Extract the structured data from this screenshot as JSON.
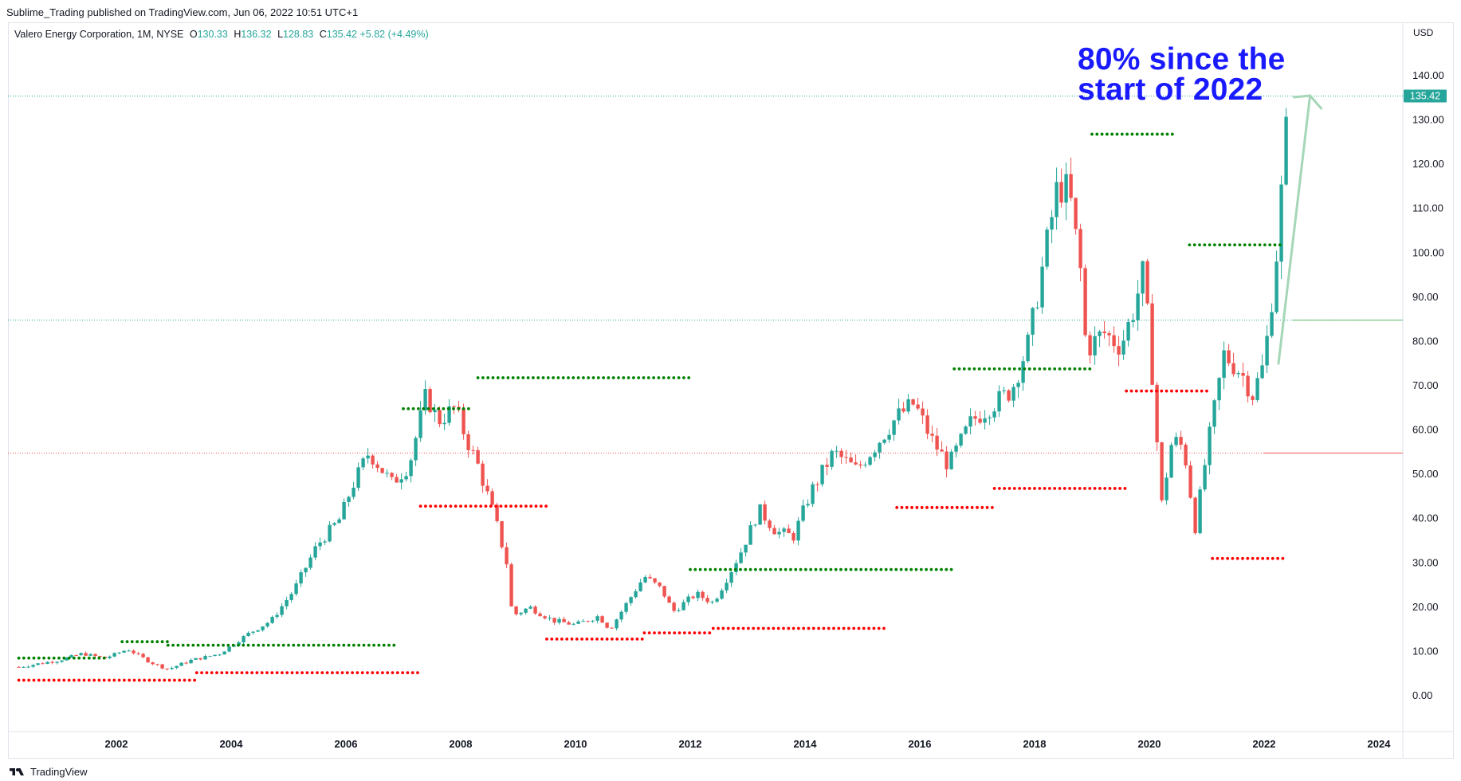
{
  "publisher_line": "Sublime_Trading published on TradingView.com, Jun 06, 2022 10:51 UTC+1",
  "legend": {
    "symbol": "Valero Energy Corporation, 1M, NYSE",
    "o_label": "O",
    "o": "130.33",
    "h_label": "H",
    "h": "136.32",
    "l_label": "L",
    "l": "128.83",
    "c_label": "C",
    "c": "135.42",
    "change": "+5.82 (+4.49%)"
  },
  "currency": "USD",
  "annotation": {
    "line1": "80% since the",
    "line2": "start of 2022"
  },
  "footer_brand": "TradingView",
  "colors": {
    "up": "#26a69a",
    "down": "#ef5350",
    "support": "#ff0000",
    "resistance": "#008000",
    "annotation": "#1a1aff",
    "arrow": "#a5d6b7"
  },
  "chart_data": {
    "type": "candlestick",
    "title": "Valero Energy Corporation, 1M, NYSE",
    "xlabel": "",
    "ylabel": "",
    "x_ticks": [
      "2002",
      "2004",
      "2006",
      "2008",
      "2010",
      "2012",
      "2014",
      "2016",
      "2018",
      "2020",
      "2022",
      "2024"
    ],
    "y_ticks": [
      "0.00",
      "10.00",
      "20.00",
      "30.00",
      "40.00",
      "50.00",
      "60.00",
      "70.00",
      "80.00",
      "90.00",
      "100.00",
      "110.00",
      "120.00",
      "130.00",
      "140.00"
    ],
    "xlim": [
      2000.25,
      2024.6
    ],
    "ylim": [
      -7,
      142
    ],
    "last_price": "135.42",
    "close_path": [
      [
        2000.3,
        6.5
      ],
      [
        2001.0,
        8
      ],
      [
        2001.4,
        9.5
      ],
      [
        2001.8,
        8.5
      ],
      [
        2002.2,
        10.5
      ],
      [
        2002.6,
        7.5
      ],
      [
        2002.9,
        6
      ],
      [
        2003.3,
        8
      ],
      [
        2003.8,
        9.5
      ],
      [
        2004.3,
        14
      ],
      [
        2004.7,
        17
      ],
      [
        2005.1,
        24
      ],
      [
        2005.5,
        34
      ],
      [
        2005.9,
        40
      ],
      [
        2006.1,
        47
      ],
      [
        2006.4,
        55
      ],
      [
        2006.8,
        48
      ],
      [
        2007.1,
        52
      ],
      [
        2007.4,
        68
      ],
      [
        2007.6,
        62
      ],
      [
        2007.9,
        65
      ],
      [
        2008.1,
        58
      ],
      [
        2008.3,
        52
      ],
      [
        2008.6,
        40
      ],
      [
        2008.8,
        30
      ],
      [
        2008.9,
        18
      ],
      [
        2009.2,
        20
      ],
      [
        2009.6,
        17
      ],
      [
        2010.0,
        16
      ],
      [
        2010.4,
        18
      ],
      [
        2010.6,
        15
      ],
      [
        2010.9,
        21
      ],
      [
        2011.2,
        27
      ],
      [
        2011.5,
        24
      ],
      [
        2011.7,
        19
      ],
      [
        2012.1,
        23
      ],
      [
        2012.4,
        21
      ],
      [
        2012.7,
        28
      ],
      [
        2012.9,
        33
      ],
      [
        2013.2,
        42
      ],
      [
        2013.5,
        37
      ],
      [
        2013.8,
        36
      ],
      [
        2014.1,
        46
      ],
      [
        2014.5,
        55
      ],
      [
        2014.9,
        51
      ],
      [
        2015.2,
        56
      ],
      [
        2015.6,
        63
      ],
      [
        2015.9,
        66
      ],
      [
        2016.2,
        58
      ],
      [
        2016.5,
        52
      ],
      [
        2016.9,
        62
      ],
      [
        2017.3,
        66
      ],
      [
        2017.6,
        69
      ],
      [
        2017.9,
        80
      ],
      [
        2018.1,
        94
      ],
      [
        2018.4,
        115
      ],
      [
        2018.6,
        114
      ],
      [
        2018.8,
        96
      ],
      [
        2018.9,
        78
      ],
      [
        2019.2,
        82
      ],
      [
        2019.5,
        79
      ],
      [
        2019.7,
        86
      ],
      [
        2019.9,
        96
      ],
      [
        2020.1,
        65
      ],
      [
        2020.2,
        42
      ],
      [
        2020.4,
        58
      ],
      [
        2020.6,
        56
      ],
      [
        2020.8,
        38
      ],
      [
        2021.0,
        55
      ],
      [
        2021.3,
        77
      ],
      [
        2021.6,
        73
      ],
      [
        2021.8,
        68
      ],
      [
        2022.0,
        75
      ],
      [
        2022.2,
        97
      ],
      [
        2022.4,
        130
      ],
      [
        2022.45,
        135.42
      ]
    ],
    "resistance_levels": [
      {
        "x": [
          2000.3,
          2001.8
        ],
        "y": 8.5
      },
      {
        "x": [
          2002.1,
          2002.9
        ],
        "y": 12.2
      },
      {
        "x": [
          2002.9,
          2006.9
        ],
        "y": 11.4
      },
      {
        "x": [
          2007.0,
          2008.2
        ],
        "y": 64.8
      },
      {
        "x": [
          2008.3,
          2012.0
        ],
        "y": 71.8
      },
      {
        "x": [
          2012.0,
          2016.6
        ],
        "y": 28.5
      },
      {
        "x": [
          2016.6,
          2019.0
        ],
        "y": 73.8
      },
      {
        "x": [
          2019.0,
          2020.4
        ],
        "y": 126.8
      },
      {
        "x": [
          2020.7,
          2022.3
        ],
        "y": 101.8
      }
    ],
    "support_levels": [
      {
        "x": [
          2000.3,
          2003.4
        ],
        "y": 3.5
      },
      {
        "x": [
          2003.4,
          2007.3
        ],
        "y": 5.2
      },
      {
        "x": [
          2007.3,
          2009.5
        ],
        "y": 42.8
      },
      {
        "x": [
          2009.5,
          2011.2
        ],
        "y": 12.8
      },
      {
        "x": [
          2011.2,
          2012.4
        ],
        "y": 14.2
      },
      {
        "x": [
          2012.4,
          2015.4
        ],
        "y": 15.2
      },
      {
        "x": [
          2015.6,
          2017.3
        ],
        "y": 42.5
      },
      {
        "x": [
          2017.3,
          2019.6
        ],
        "y": 46.8
      },
      {
        "x": [
          2019.6,
          2021.0
        ],
        "y": 68.8
      },
      {
        "x": [
          2021.1,
          2022.4
        ],
        "y": 31.0
      }
    ],
    "horizontal_lines": [
      {
        "y": 135.42,
        "style": "dotted",
        "color": "#26a69a"
      },
      {
        "y": 84.8,
        "style": "dotted",
        "color": "#26a69a"
      },
      {
        "y": 54.8,
        "style": "dotted",
        "color": "#ef5350"
      }
    ]
  }
}
